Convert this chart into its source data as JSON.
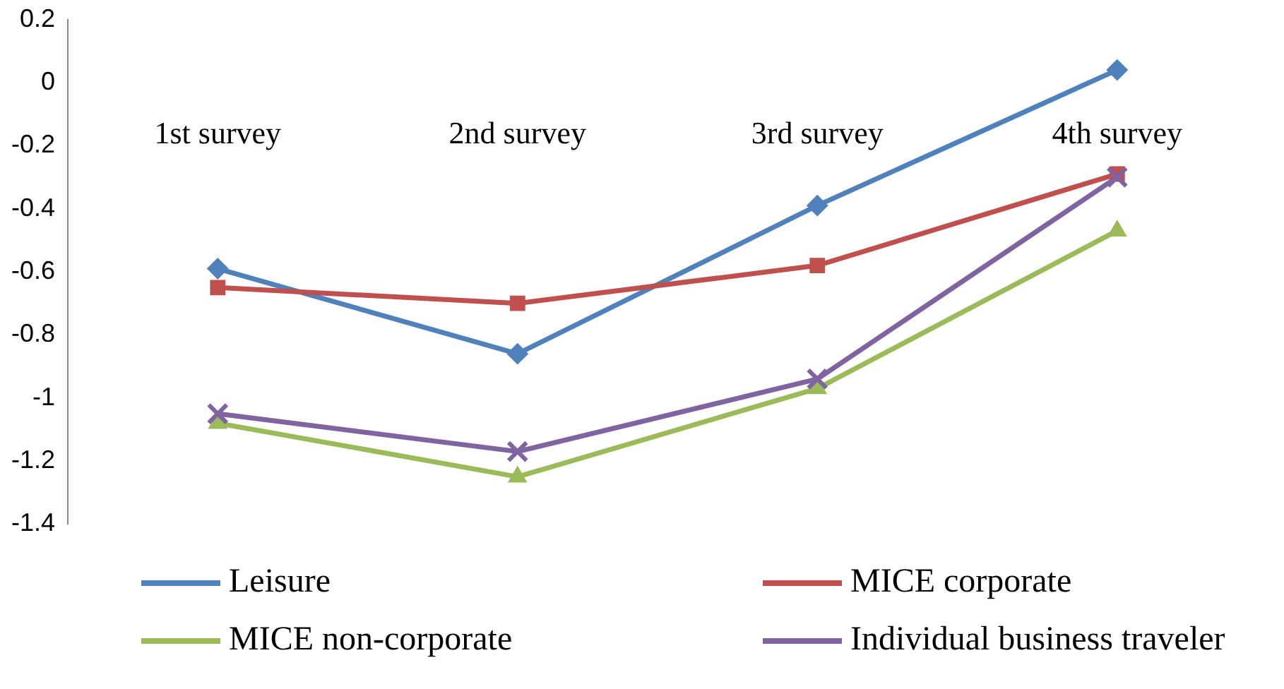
{
  "chart_data": {
    "type": "line",
    "categories": [
      "1st survey",
      "2nd survey",
      "3rd survey",
      "4th survey"
    ],
    "series": [
      {
        "name": "Leisure",
        "color": "#4f81bd",
        "marker": "diamond",
        "values": [
          -0.59,
          -0.86,
          -0.39,
          0.04
        ]
      },
      {
        "name": "MICE corporate",
        "color": "#c0504d",
        "marker": "square",
        "values": [
          -0.65,
          -0.7,
          -0.58,
          -0.29
        ]
      },
      {
        "name": "MICE non-corporate",
        "color": "#9bbb59",
        "marker": "triangle",
        "values": [
          -1.08,
          -1.25,
          -0.97,
          -0.47
        ]
      },
      {
        "name": "Individual business traveler",
        "color": "#8064a2",
        "marker": "cross",
        "values": [
          -1.05,
          -1.17,
          -0.94,
          -0.3
        ]
      }
    ],
    "ylim": [
      -1.4,
      0.2
    ],
    "yticks": [
      -1.4,
      -1.2,
      -1,
      -0.8,
      -0.6,
      -0.4,
      -0.2,
      0,
      0.2
    ],
    "grid": false,
    "legend": "bottom",
    "line_style": "solid"
  }
}
